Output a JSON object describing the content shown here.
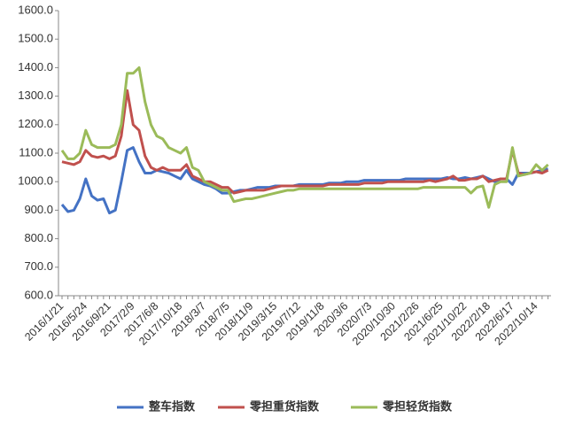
{
  "chart_data": {
    "type": "line",
    "categories": [
      "2016/1/21",
      null,
      null,
      null,
      "2016/5/24",
      null,
      null,
      null,
      "2016/9/21",
      null,
      null,
      null,
      "2017/2/9",
      null,
      null,
      null,
      "2017/6/8",
      null,
      null,
      null,
      "2017/10/18",
      null,
      null,
      null,
      "2018/3/7",
      null,
      null,
      null,
      "2018/7/5",
      null,
      null,
      null,
      "2018/11/9",
      null,
      null,
      null,
      "2019/3/15",
      null,
      null,
      null,
      "2019/7/12",
      null,
      null,
      null,
      "2019/11/8",
      null,
      null,
      null,
      "2020/3/6",
      null,
      null,
      null,
      "2020/7/3",
      null,
      null,
      null,
      "2020/10/30",
      null,
      null,
      null,
      "2021/2/26",
      null,
      null,
      null,
      "2021/6/25",
      null,
      null,
      null,
      "2021/10/22",
      null,
      null,
      null,
      "2022/2/18",
      null,
      null,
      null,
      "2022/6/17",
      null,
      null,
      null,
      "2022/10/14",
      null,
      null
    ],
    "series": [
      {
        "name": "整车指数",
        "color": "#4472c4",
        "values": [
          920,
          895,
          900,
          940,
          1010,
          950,
          935,
          940,
          890,
          900,
          1000,
          1110,
          1120,
          1070,
          1030,
          1030,
          1040,
          1035,
          1030,
          1020,
          1010,
          1040,
          1010,
          1000,
          990,
          985,
          975,
          960,
          960,
          965,
          970,
          970,
          975,
          980,
          980,
          980,
          985,
          985,
          985,
          985,
          990,
          990,
          990,
          990,
          990,
          995,
          995,
          995,
          1000,
          1000,
          1000,
          1005,
          1005,
          1005,
          1005,
          1005,
          1005,
          1005,
          1010,
          1010,
          1010,
          1010,
          1010,
          1010,
          1010,
          1015,
          1010,
          1010,
          1015,
          1010,
          1015,
          1020,
          1010,
          1000,
          1010,
          1010,
          990,
          1030,
          1030,
          1030,
          1035,
          1040,
          1045
        ]
      },
      {
        "name": "零担重货指数",
        "color": "#c0504d",
        "values": [
          1070,
          1065,
          1060,
          1070,
          1110,
          1090,
          1085,
          1090,
          1080,
          1090,
          1160,
          1320,
          1200,
          1180,
          1090,
          1050,
          1040,
          1050,
          1040,
          1040,
          1040,
          1060,
          1020,
          1010,
          1000,
          1000,
          990,
          980,
          980,
          960,
          965,
          970,
          970,
          970,
          970,
          975,
          980,
          985,
          985,
          985,
          985,
          985,
          985,
          985,
          985,
          990,
          990,
          990,
          990,
          990,
          990,
          995,
          995,
          995,
          995,
          1000,
          1000,
          1000,
          1000,
          1000,
          1000,
          1000,
          1005,
          1000,
          1005,
          1010,
          1020,
          1005,
          1005,
          1010,
          1010,
          1020,
          1000,
          1005,
          1010,
          1010,
          1110,
          1030,
          1025,
          1030,
          1035,
          1030,
          1040
        ]
      },
      {
        "name": "零担轻货指数",
        "color": "#9bbb59",
        "values": [
          1110,
          1080,
          1080,
          1100,
          1180,
          1130,
          1120,
          1120,
          1120,
          1130,
          1200,
          1380,
          1380,
          1400,
          1280,
          1200,
          1160,
          1150,
          1120,
          1110,
          1100,
          1120,
          1050,
          1040,
          1000,
          990,
          980,
          970,
          970,
          930,
          935,
          940,
          940,
          945,
          950,
          955,
          960,
          965,
          970,
          970,
          975,
          975,
          975,
          975,
          975,
          975,
          975,
          975,
          975,
          975,
          975,
          975,
          975,
          975,
          975,
          975,
          975,
          975,
          975,
          975,
          975,
          980,
          980,
          980,
          980,
          980,
          980,
          980,
          980,
          960,
          980,
          985,
          910,
          990,
          1000,
          1000,
          1120,
          1020,
          1025,
          1030,
          1060,
          1040,
          1060
        ]
      }
    ],
    "ylim": [
      600,
      1600
    ],
    "yticks": [
      {
        "value": 600,
        "label": "600.0"
      },
      {
        "value": 700,
        "label": "700.0"
      },
      {
        "value": 800,
        "label": "800.0"
      },
      {
        "value": 900,
        "label": "900.0"
      },
      {
        "value": 1000,
        "label": "1000.0"
      },
      {
        "value": 1100,
        "label": "1100.0"
      },
      {
        "value": 1200,
        "label": "1200.0"
      },
      {
        "value": 1300,
        "label": "1300.0"
      },
      {
        "value": 1400,
        "label": "1400.0"
      },
      {
        "value": 1500,
        "label": "1500.0"
      },
      {
        "value": 1600,
        "label": "1600.0"
      }
    ],
    "grid": false,
    "legend": "bottom"
  }
}
